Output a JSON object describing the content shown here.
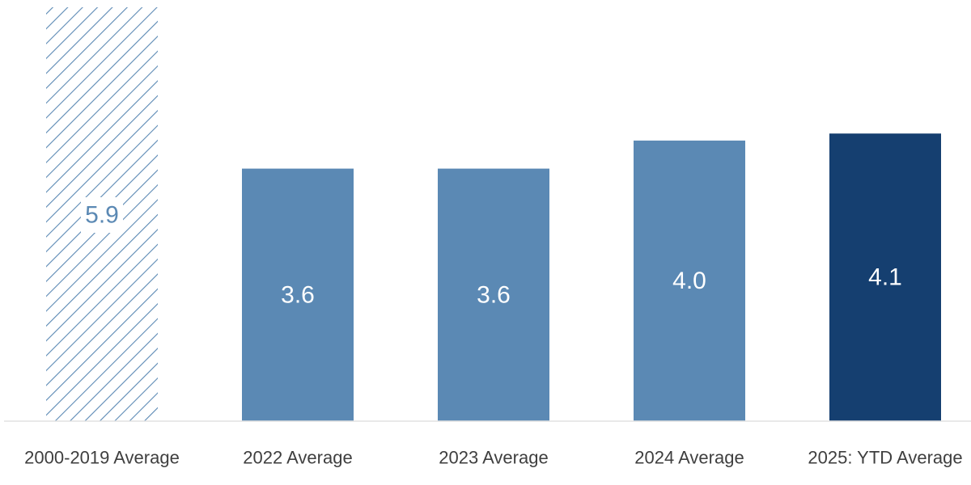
{
  "chart_data": {
    "type": "bar",
    "categories": [
      "2000-2019 Average",
      "2022 Average",
      "2023 Average",
      "2024 Average",
      "2025: YTD Average"
    ],
    "values": [
      5.9,
      3.6,
      3.6,
      4.0,
      4.1
    ],
    "value_labels": [
      "5.9",
      "3.6",
      "3.6",
      "4.0",
      "4.1"
    ],
    "bar_styles": [
      "hatched",
      "solid",
      "solid",
      "solid",
      "solid"
    ],
    "bar_colors": [
      "#5b89b4",
      "#5b89b4",
      "#5b89b4",
      "#5b89b4",
      "#153f70"
    ],
    "ylim": [
      0,
      5.9
    ],
    "grid": false,
    "legend": "none"
  }
}
